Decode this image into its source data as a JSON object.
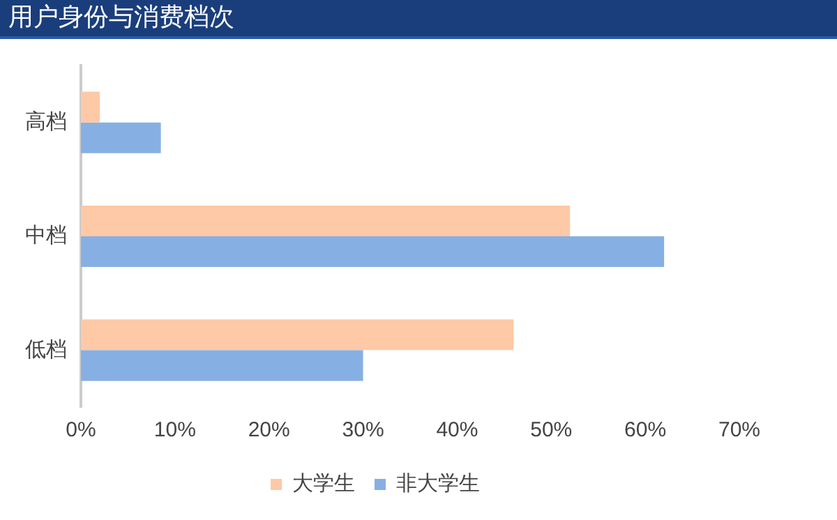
{
  "chart_data": {
    "type": "bar",
    "orientation": "horizontal",
    "title": "用户身份与消费档次",
    "categories": [
      "高档",
      "中档",
      "低档"
    ],
    "series": [
      {
        "name": "大学生",
        "color": "#fdc9a6",
        "values": [
          2,
          52,
          46
        ]
      },
      {
        "name": "非大学生",
        "color": "#86b0e3",
        "values": [
          8.5,
          62,
          30
        ]
      }
    ],
    "xlim": [
      0,
      70
    ],
    "xticks": [
      {
        "value": 0,
        "label": "0%"
      },
      {
        "value": 10,
        "label": "10%"
      },
      {
        "value": 20,
        "label": "20%"
      },
      {
        "value": 30,
        "label": "30%"
      },
      {
        "value": 40,
        "label": "40%"
      },
      {
        "value": 50,
        "label": "50%"
      },
      {
        "value": 60,
        "label": "60%"
      },
      {
        "value": 70,
        "label": "70%"
      }
    ],
    "grid": false,
    "legend": "bottom"
  }
}
